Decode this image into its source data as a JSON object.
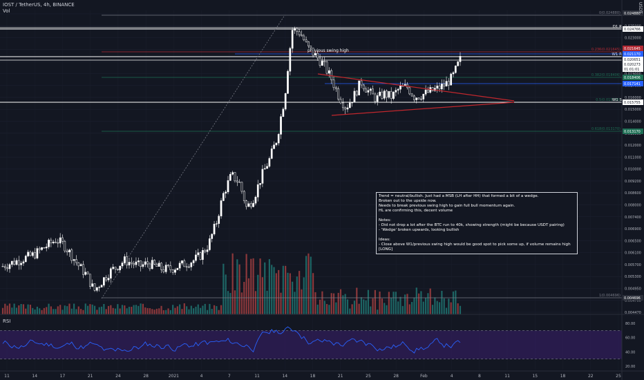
{
  "header": {
    "symbol_line": "IOST / TetherUS, 4h, BINANCE",
    "volume_label": "Vol",
    "rsi_label": "RSI",
    "currency": "USDT"
  },
  "annotations": {
    "swing_label": "previous swing high",
    "d1_label": "D1 R",
    "w1r_label": "W1 R",
    "w1s_label": "W1 S",
    "note_lines": [
      "Trend = neutral/bullish. Just had a MSB (LH after HH) that formed a bit of a wedge.",
      "Broken out to the upside now.",
      "Needs to break previous swing high to gain full bull momentum again.",
      "HL are confirming this, decent volume",
      "",
      "Notes:",
      "- Did not drop a lot after the BTC run to 40k, showing strength (might be because USDT pairing)",
      "- 'Wedge' broken upwards, looking bullish",
      "",
      "Ideas:",
      "- Close above W1/previous swing high would be good spot to pick some up, if volume remains high [LONG]"
    ]
  },
  "colors": {
    "background": "#131722",
    "candle": "#ffffff",
    "fib_red": "#b22833",
    "fib_green": "#1e6f55",
    "wedge": "#c2272d",
    "vol_up": "#26a69a",
    "vol_down": "#ef5350",
    "rsi_line": "#2962ff",
    "rsi_fill": "#3b1f6e",
    "blue_tag": "#2962ff"
  },
  "chart_data": {
    "type": "candlestick",
    "title": "IOST / TetherUS, 4h, BINANCE",
    "price_axis": {
      "ticks": [
        "0.027000",
        "0.025000",
        "0.023000",
        "0.022000",
        "0.020000",
        "0.019000",
        "0.017000",
        "0.016000",
        "0.015000",
        "0.014000",
        "0.013000",
        "0.012000",
        "0.011000",
        "0.010000",
        "0.009200",
        "0.008600",
        "0.008000",
        "0.007400",
        "0.006900",
        "0.006500",
        "0.006100",
        "0.005700",
        "0.005300",
        "0.004950",
        "0.004700",
        "0.004470"
      ]
    },
    "time_axis": {
      "ticks": [
        "11",
        "14",
        "17",
        "21",
        "24",
        "28",
        "2021",
        "4",
        "7",
        "11",
        "14",
        "18",
        "21",
        "25",
        "28",
        "Feb",
        "4",
        "8",
        "11",
        "15",
        "18",
        "22",
        "25"
      ]
    },
    "rsi_axis": {
      "ticks": [
        "80.00",
        "60.00",
        "40.00",
        "20.00"
      ],
      "bands": [
        30,
        70
      ]
    },
    "fib_levels": [
      {
        "label": "0(0.024880)",
        "price": 0.02488,
        "tag": "0.024880"
      },
      {
        "label": "0.236(0.021645)",
        "price": 0.021645,
        "tag": "0.021645"
      },
      {
        "label": "0.382(0.018406)",
        "price": 0.018406,
        "tag": "0.018406"
      },
      {
        "label": "0.5(0.015755)",
        "price": 0.015755,
        "tag": "0.015755"
      },
      {
        "label": "0.618(0.013170)",
        "price": 0.01317,
        "tag": "0.013170"
      },
      {
        "label": "1(0.004696)",
        "price": 0.004696,
        "tag": "0.004696"
      }
    ],
    "horizontal_levels": [
      {
        "name": "D1 R",
        "price": 0.024766,
        "tag": "0.024766"
      },
      {
        "name": "W1 R",
        "price": 0.02117,
        "tag": "0.021170"
      },
      {
        "name": "W1 S",
        "price": 0.015755,
        "tag": "0.015755"
      }
    ],
    "price_tags": [
      "0.020651",
      "0.020273",
      "01:01:01",
      "0.017141"
    ],
    "series": [
      {
        "name": "price",
        "close": [
          0.0058,
          0.0059,
          0.006,
          0.0061,
          0.0062,
          0.0064,
          0.0066,
          0.0068,
          0.0066,
          0.0062,
          0.0058,
          0.0055,
          0.005,
          0.0053,
          0.0056,
          0.0058,
          0.006,
          0.0059,
          0.0058,
          0.0059,
          0.0058,
          0.0057,
          0.0057,
          0.0058,
          0.0059,
          0.006,
          0.0062,
          0.0066,
          0.0075,
          0.009,
          0.01,
          0.0096,
          0.0082,
          0.0088,
          0.01,
          0.011,
          0.0125,
          0.016,
          0.024,
          0.0235,
          0.0215,
          0.0205,
          0.0195,
          0.018,
          0.0162,
          0.015,
          0.016,
          0.0175,
          0.0165,
          0.0158,
          0.0163,
          0.016,
          0.0168,
          0.017,
          0.016,
          0.0162,
          0.0165,
          0.0168,
          0.0172,
          0.018,
          0.02
        ]
      }
    ]
  }
}
